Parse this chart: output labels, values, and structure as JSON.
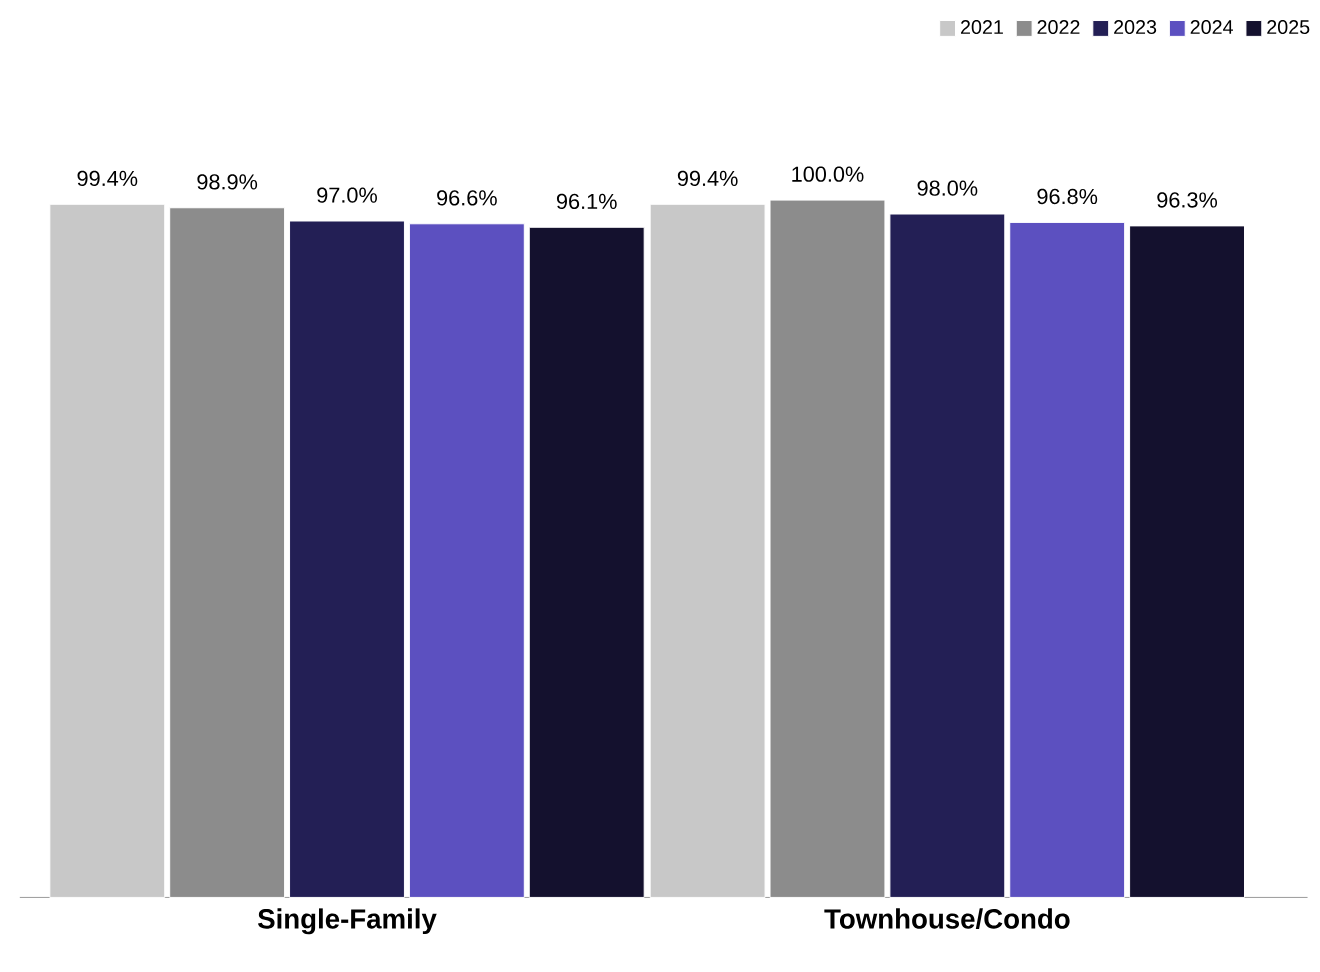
{
  "chart_data": {
    "type": "bar",
    "categories": [
      "Single-Family",
      "Townhouse/Condo"
    ],
    "ylim": [
      0,
      100
    ],
    "legend": "top right",
    "series": [
      {
        "name": "2021",
        "color": "#c8c8c8",
        "values": [
          99.4,
          99.4
        ],
        "value_labels": [
          "99.4%",
          "99.4%"
        ]
      },
      {
        "name": "2022",
        "color": "#8c8c8c",
        "values": [
          98.9,
          100.0
        ],
        "value_labels": [
          "98.9%",
          "100.0%"
        ]
      },
      {
        "name": "2023",
        "color": "#231f55",
        "values": [
          97.0,
          98.0
        ],
        "value_labels": [
          "97.0%",
          "98.0%"
        ]
      },
      {
        "name": "2024",
        "color": "#5c50c0",
        "values": [
          96.6,
          96.8
        ],
        "value_labels": [
          "96.6%",
          "96.8%"
        ]
      },
      {
        "name": "2025",
        "color": "#14112e",
        "values": [
          96.1,
          96.3
        ],
        "value_labels": [
          "96.1%",
          "96.3%"
        ]
      }
    ]
  }
}
